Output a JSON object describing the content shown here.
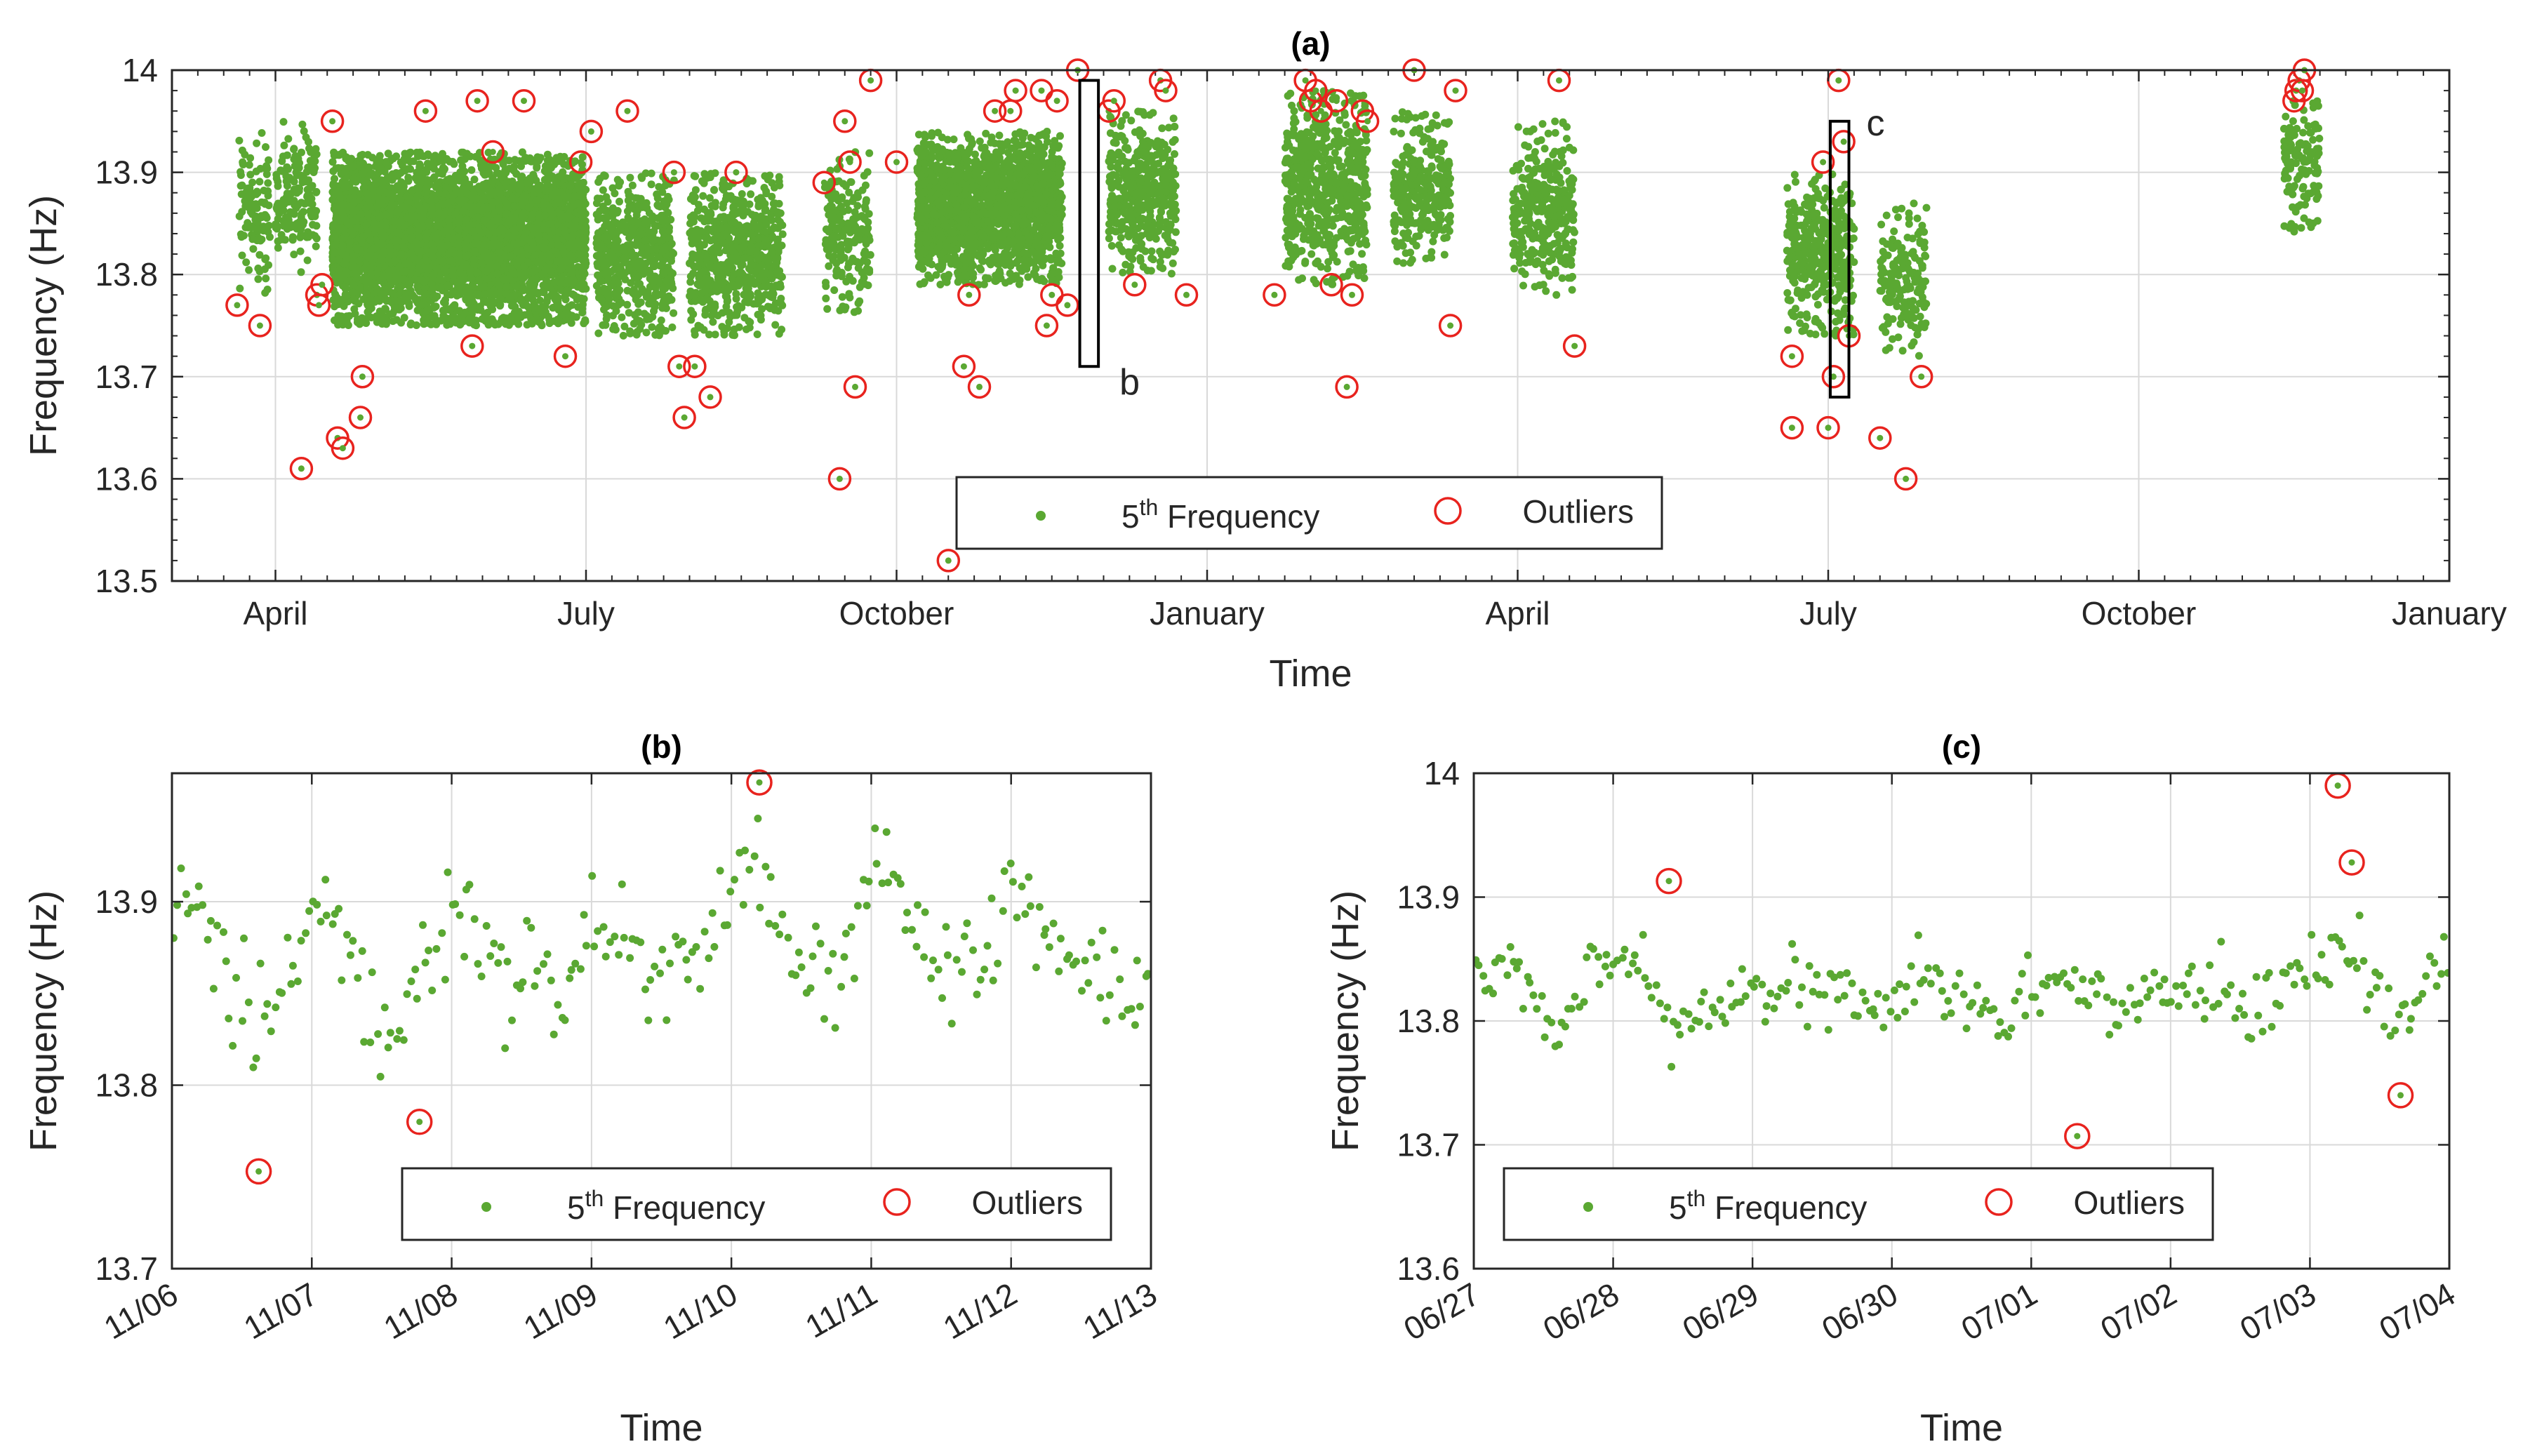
{
  "chart_data": [
    {
      "id": "a",
      "type": "scatter",
      "title": "(a)",
      "xlabel": "Time",
      "ylabel": "Frequency (Hz)",
      "ylim": [
        13.5,
        14.0
      ],
      "yticks": [
        "13.5",
        "13.6",
        "13.7",
        "13.8",
        "13.9",
        "14"
      ],
      "yticks_values": [
        13.5,
        13.6,
        13.7,
        13.8,
        13.9,
        14.0
      ],
      "x_unit": "months since March 1 (year 1)",
      "xlim": [
        0,
        22
      ],
      "xticks": [
        {
          "label": "April",
          "value": 1.0
        },
        {
          "label": "July",
          "value": 4.0
        },
        {
          "label": "October",
          "value": 7.0
        },
        {
          "label": "January",
          "value": 10.0
        },
        {
          "label": "April",
          "value": 13.0
        },
        {
          "label": "July",
          "value": 16.0
        },
        {
          "label": "October",
          "value": 19.0
        },
        {
          "label": "January",
          "value": 22.0
        }
      ],
      "grid": true,
      "legend_position": "bottom-center",
      "series": [
        {
          "name": "5th Frequency",
          "name_main": "5",
          "name_sup": "th",
          "name_rest": " Frequency",
          "marker": "dot",
          "color": "#5aa832",
          "clusters": [
            {
              "x_start": 0.65,
              "x_end": 0.95,
              "y_min": 13.78,
              "y_max": 13.96,
              "density": 60
            },
            {
              "x_start": 1.0,
              "x_end": 1.4,
              "y_min": 13.8,
              "y_max": 13.95,
              "density": 70
            },
            {
              "x_start": 1.55,
              "x_end": 4.0,
              "y_min": 13.75,
              "y_max": 13.92,
              "density": 320
            },
            {
              "x_start": 4.1,
              "x_end": 4.85,
              "y_min": 13.74,
              "y_max": 13.9,
              "density": 120
            },
            {
              "x_start": 5.0,
              "x_end": 5.9,
              "y_min": 13.74,
              "y_max": 13.9,
              "density": 130
            },
            {
              "x_start": 6.3,
              "x_end": 6.75,
              "y_min": 13.76,
              "y_max": 13.92,
              "density": 70
            },
            {
              "x_start": 7.2,
              "x_end": 8.6,
              "y_min": 13.79,
              "y_max": 13.94,
              "density": 220
            },
            {
              "x_start": 9.05,
              "x_end": 9.7,
              "y_min": 13.8,
              "y_max": 13.96,
              "density": 110
            },
            {
              "x_start": 10.75,
              "x_end": 11.55,
              "y_min": 13.79,
              "y_max": 13.98,
              "density": 130
            },
            {
              "x_start": 11.8,
              "x_end": 12.35,
              "y_min": 13.81,
              "y_max": 13.96,
              "density": 90
            },
            {
              "x_start": 12.95,
              "x_end": 13.55,
              "y_min": 13.78,
              "y_max": 13.95,
              "density": 90
            },
            {
              "x_start": 15.6,
              "x_end": 16.25,
              "y_min": 13.74,
              "y_max": 13.9,
              "density": 100
            },
            {
              "x_start": 16.5,
              "x_end": 16.95,
              "y_min": 13.72,
              "y_max": 13.87,
              "density": 70
            },
            {
              "x_start": 20.4,
              "x_end": 20.75,
              "y_min": 13.84,
              "y_max": 13.97,
              "density": 60
            }
          ]
        },
        {
          "name": "Outliers",
          "marker": "open-circle",
          "color": "#e8231e",
          "points": [
            [
              0.63,
              13.77
            ],
            [
              0.85,
              13.75
            ],
            [
              1.25,
              13.61
            ],
            [
              1.4,
              13.78
            ],
            [
              1.42,
              13.77
            ],
            [
              1.45,
              13.79
            ],
            [
              1.55,
              13.95
            ],
            [
              1.6,
              13.64
            ],
            [
              1.65,
              13.63
            ],
            [
              1.82,
              13.66
            ],
            [
              1.84,
              13.7
            ],
            [
              2.45,
              13.96
            ],
            [
              2.9,
              13.73
            ],
            [
              2.95,
              13.97
            ],
            [
              3.1,
              13.92
            ],
            [
              3.4,
              13.97
            ],
            [
              3.8,
              13.72
            ],
            [
              3.95,
              13.91
            ],
            [
              4.05,
              13.94
            ],
            [
              4.4,
              13.96
            ],
            [
              4.85,
              13.9
            ],
            [
              4.9,
              13.71
            ],
            [
              4.95,
              13.66
            ],
            [
              5.05,
              13.71
            ],
            [
              5.2,
              13.68
            ],
            [
              5.45,
              13.9
            ],
            [
              6.3,
              13.89
            ],
            [
              6.45,
              13.6
            ],
            [
              6.5,
              13.95
            ],
            [
              6.55,
              13.91
            ],
            [
              6.6,
              13.69
            ],
            [
              6.75,
              13.99
            ],
            [
              7.0,
              13.91
            ],
            [
              7.65,
              13.71
            ],
            [
              7.5,
              13.52
            ],
            [
              7.7,
              13.78
            ],
            [
              7.8,
              13.69
            ],
            [
              7.95,
              13.96
            ],
            [
              8.1,
              13.96
            ],
            [
              8.15,
              13.98
            ],
            [
              8.4,
              13.98
            ],
            [
              8.45,
              13.75
            ],
            [
              8.5,
              13.78
            ],
            [
              8.55,
              13.97
            ],
            [
              8.65,
              13.77
            ],
            [
              8.75,
              14.0
            ],
            [
              9.05,
              13.96
            ],
            [
              9.1,
              13.97
            ],
            [
              9.3,
              13.79
            ],
            [
              9.55,
              13.99
            ],
            [
              9.6,
              13.98
            ],
            [
              9.8,
              13.78
            ],
            [
              10.65,
              13.78
            ],
            [
              10.95,
              13.99
            ],
            [
              11.0,
              13.97
            ],
            [
              11.05,
              13.98
            ],
            [
              11.1,
              13.96
            ],
            [
              11.2,
              13.79
            ],
            [
              11.25,
              13.97
            ],
            [
              11.35,
              13.69
            ],
            [
              11.4,
              13.78
            ],
            [
              11.5,
              13.96
            ],
            [
              11.55,
              13.95
            ],
            [
              12.0,
              14.0
            ],
            [
              12.35,
              13.75
            ],
            [
              12.4,
              13.98
            ],
            [
              13.4,
              13.99
            ],
            [
              13.55,
              13.73
            ],
            [
              15.65,
              13.72
            ],
            [
              15.65,
              13.65
            ],
            [
              15.95,
              13.91
            ],
            [
              16.0,
              13.65
            ],
            [
              16.05,
              13.7
            ],
            [
              16.1,
              13.99
            ],
            [
              16.15,
              13.93
            ],
            [
              16.2,
              13.74
            ],
            [
              16.5,
              13.64
            ],
            [
              16.75,
              13.6
            ],
            [
              16.9,
              13.7
            ],
            [
              20.5,
              13.97
            ],
            [
              20.52,
              13.98
            ],
            [
              20.55,
              13.99
            ],
            [
              20.58,
              13.98
            ],
            [
              20.6,
              14.0
            ]
          ]
        }
      ],
      "annotations": [
        {
          "label": "b",
          "x_start": 8.77,
          "x_end": 8.95,
          "y_min": 13.71,
          "y_max": 13.99
        },
        {
          "label": "c",
          "x_start": 16.02,
          "x_end": 16.2,
          "y_min": 13.68,
          "y_max": 13.95
        }
      ]
    },
    {
      "id": "b",
      "type": "scatter",
      "title": "(b)",
      "xlabel": "Time",
      "ylabel": "Frequency (Hz)",
      "ylim": [
        13.7,
        13.97
      ],
      "yticks": [
        "13.7",
        "13.8",
        "13.9"
      ],
      "yticks_values": [
        13.7,
        13.8,
        13.9
      ],
      "xlim": [
        0,
        7
      ],
      "xticks": [
        {
          "label": "11/06",
          "value": 0
        },
        {
          "label": "11/07",
          "value": 1
        },
        {
          "label": "11/08",
          "value": 2
        },
        {
          "label": "11/09",
          "value": 3
        },
        {
          "label": "11/10",
          "value": 4
        },
        {
          "label": "11/11",
          "value": 5
        },
        {
          "label": "11/12",
          "value": 6
        },
        {
          "label": "11/13",
          "value": 7
        }
      ],
      "grid": true,
      "legend_position": "bottom-center",
      "series": [
        {
          "name": "5th Frequency",
          "name_main": "5",
          "name_sup": "th",
          "name_rest": " Frequency",
          "marker": "dot",
          "color": "#5aa832",
          "trend": [
            [
              0.0,
              13.89
            ],
            [
              0.2,
              13.9
            ],
            [
              0.4,
              13.86
            ],
            [
              0.6,
              13.83
            ],
            [
              0.8,
              13.85
            ],
            [
              1.0,
              13.9
            ],
            [
              1.2,
              13.9
            ],
            [
              1.4,
              13.84
            ],
            [
              1.6,
              13.82
            ],
            [
              1.8,
              13.87
            ],
            [
              2.0,
              13.89
            ],
            [
              2.2,
              13.88
            ],
            [
              2.4,
              13.85
            ],
            [
              2.6,
              13.86
            ],
            [
              2.8,
              13.85
            ],
            [
              3.0,
              13.89
            ],
            [
              3.2,
              13.88
            ],
            [
              3.4,
              13.86
            ],
            [
              3.6,
              13.87
            ],
            [
              3.8,
              13.88
            ],
            [
              4.0,
              13.91
            ],
            [
              4.2,
              13.92
            ],
            [
              4.4,
              13.87
            ],
            [
              4.6,
              13.86
            ],
            [
              4.8,
              13.87
            ],
            [
              5.0,
              13.92
            ],
            [
              5.2,
              13.91
            ],
            [
              5.4,
              13.87
            ],
            [
              5.6,
              13.85
            ],
            [
              5.8,
              13.87
            ],
            [
              6.0,
              13.9
            ],
            [
              6.2,
              13.89
            ],
            [
              6.4,
              13.87
            ],
            [
              6.6,
              13.86
            ],
            [
              6.8,
              13.85
            ],
            [
              7.0,
              13.85
            ]
          ],
          "count": 260,
          "spread": 0.03
        },
        {
          "name": "Outliers",
          "marker": "open-circle",
          "color": "#e8231e",
          "points": [
            [
              0.62,
              13.753
            ],
            [
              1.77,
              13.78
            ],
            [
              4.2,
              13.965
            ]
          ]
        }
      ]
    },
    {
      "id": "c",
      "type": "scatter",
      "title": "(c)",
      "xlabel": "Time",
      "ylabel": "Frequency (Hz)",
      "ylim": [
        13.6,
        14.0
      ],
      "yticks": [
        "13.6",
        "13.7",
        "13.8",
        "13.9",
        "14"
      ],
      "yticks_values": [
        13.6,
        13.7,
        13.8,
        13.9,
        14.0
      ],
      "xlim": [
        0,
        7
      ],
      "xticks": [
        {
          "label": "06/27",
          "value": 0
        },
        {
          "label": "06/28",
          "value": 1
        },
        {
          "label": "06/29",
          "value": 2
        },
        {
          "label": "06/30",
          "value": 3
        },
        {
          "label": "07/01",
          "value": 4
        },
        {
          "label": "07/02",
          "value": 5
        },
        {
          "label": "07/03",
          "value": 6
        },
        {
          "label": "07/04",
          "value": 7
        }
      ],
      "grid": true,
      "legend_position": "bottom-center",
      "series": [
        {
          "name": "5th Frequency",
          "name_main": "5",
          "name_sup": "th",
          "name_rest": " Frequency",
          "marker": "dot",
          "color": "#5aa832",
          "trend": [
            [
              0.0,
              13.84
            ],
            [
              0.2,
              13.84
            ],
            [
              0.4,
              13.82
            ],
            [
              0.6,
              13.78
            ],
            [
              0.8,
              13.83
            ],
            [
              1.0,
              13.86
            ],
            [
              1.2,
              13.84
            ],
            [
              1.4,
              13.8
            ],
            [
              1.6,
              13.8
            ],
            [
              1.8,
              13.82
            ],
            [
              2.0,
              13.83
            ],
            [
              2.2,
              13.83
            ],
            [
              2.4,
              13.82
            ],
            [
              2.6,
              13.82
            ],
            [
              2.8,
              13.81
            ],
            [
              3.0,
              13.82
            ],
            [
              3.2,
              13.84
            ],
            [
              3.4,
              13.83
            ],
            [
              3.6,
              13.81
            ],
            [
              3.8,
              13.8
            ],
            [
              4.0,
              13.83
            ],
            [
              4.2,
              13.84
            ],
            [
              4.4,
              13.82
            ],
            [
              4.6,
              13.81
            ],
            [
              4.8,
              13.82
            ],
            [
              5.0,
              13.83
            ],
            [
              5.2,
              13.83
            ],
            [
              5.4,
              13.82
            ],
            [
              5.6,
              13.81
            ],
            [
              5.8,
              13.82
            ],
            [
              6.0,
              13.85
            ],
            [
              6.2,
              13.86
            ],
            [
              6.4,
              13.84
            ],
            [
              6.6,
              13.8
            ],
            [
              6.8,
              13.82
            ],
            [
              7.0,
              13.86
            ]
          ],
          "count": 280,
          "spread": 0.03
        },
        {
          "name": "Outliers",
          "marker": "open-circle",
          "color": "#e8231e",
          "points": [
            [
              1.4,
              13.913
            ],
            [
              4.33,
              13.707
            ],
            [
              6.2,
              13.99
            ],
            [
              6.3,
              13.928
            ],
            [
              6.65,
              13.74
            ]
          ]
        }
      ]
    }
  ]
}
